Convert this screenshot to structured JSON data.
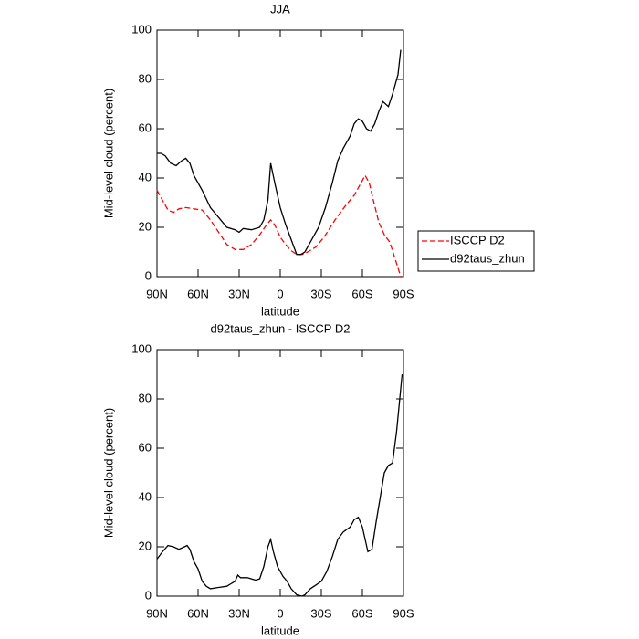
{
  "chart_data": [
    {
      "type": "line",
      "title": "JJA",
      "xlabel": "latitude",
      "ylabel": "Mid-level cloud (percent)",
      "xlim": [
        90,
        -90
      ],
      "ylim": [
        0,
        100
      ],
      "xticks": [
        {
          "value": 90,
          "label": "90N"
        },
        {
          "value": 60,
          "label": "60N"
        },
        {
          "value": 30,
          "label": "30N"
        },
        0,
        {
          "value": -30,
          "label": "30S"
        },
        {
          "value": -60,
          "label": "60S"
        },
        {
          "value": -90,
          "label": "90S"
        }
      ],
      "yticks": [
        0,
        20,
        40,
        60,
        80,
        100
      ],
      "legend": "outside-right",
      "series": [
        {
          "name": "ISCCP D2",
          "color": "#ff0000",
          "dash": true,
          "x": [
            90,
            86,
            82,
            78,
            74,
            69,
            63,
            57,
            51,
            45,
            39,
            33,
            27,
            21,
            15,
            10,
            7,
            4,
            0,
            -4,
            -8,
            -12,
            -16,
            -20,
            -26,
            -32,
            -40,
            -48,
            -54,
            -58,
            -62,
            -65,
            -68,
            -72,
            -76,
            -80,
            -84,
            -88
          ],
          "values": [
            35,
            31,
            27,
            26,
            27.5,
            28,
            27.5,
            27,
            23,
            18,
            13,
            11,
            11,
            13,
            17,
            21,
            23,
            21,
            16,
            13,
            10.5,
            9,
            9,
            10,
            12,
            16,
            23,
            29,
            33,
            37,
            41,
            38,
            31,
            22,
            17,
            14,
            7,
            0
          ]
        },
        {
          "name": "d92taus_zhun",
          "color": "#000000",
          "dash": false,
          "x": [
            90,
            87,
            84,
            80,
            76,
            72,
            69,
            66,
            63,
            57,
            51,
            45,
            39,
            33,
            30,
            27,
            21,
            15,
            12,
            9,
            7,
            4,
            0,
            -4,
            -8,
            -12,
            -15,
            -18,
            -22,
            -28,
            -33,
            -38,
            -42,
            -46,
            -51,
            -54,
            -57,
            -60,
            -63,
            -66,
            -69,
            -72,
            -75,
            -79,
            -82,
            -86,
            -88
          ],
          "values": [
            50,
            50,
            49,
            46,
            45,
            47,
            48,
            46,
            41,
            35,
            28,
            24,
            20,
            19,
            18,
            19.5,
            19,
            20,
            23,
            31,
            46,
            38,
            28,
            21,
            15,
            9,
            9,
            10,
            14,
            20,
            28,
            38,
            47,
            52,
            57,
            62,
            64,
            63,
            60,
            59,
            62,
            67,
            71,
            69,
            74,
            82,
            92
          ]
        }
      ]
    },
    {
      "type": "line",
      "title": "d92taus_zhun - ISCCP D2",
      "xlabel": "latitude",
      "ylabel": "Mid-level cloud (percent)",
      "xlim": [
        90,
        -90
      ],
      "ylim": [
        0,
        100
      ],
      "xticks": [
        {
          "value": 90,
          "label": "90N"
        },
        {
          "value": 60,
          "label": "60N"
        },
        {
          "value": 30,
          "label": "30N"
        },
        0,
        {
          "value": -30,
          "label": "30S"
        },
        {
          "value": -60,
          "label": "60S"
        },
        {
          "value": -90,
          "label": "90S"
        }
      ],
      "yticks": [
        0,
        20,
        40,
        60,
        80,
        100
      ],
      "series": [
        {
          "color": "#000000",
          "dash": false,
          "x": [
            90,
            86,
            82,
            78,
            74,
            70,
            68,
            66,
            63,
            60,
            57,
            54,
            51,
            45,
            39,
            36,
            33,
            31,
            29,
            24,
            18,
            15,
            12,
            9,
            7,
            5,
            2,
            -2,
            -5,
            -8,
            -12,
            -16,
            -18,
            -22,
            -26,
            -30,
            -34,
            -38,
            -42,
            -46,
            -51,
            -54,
            -57,
            -60,
            -64,
            -67,
            -70,
            -73,
            -76,
            -79,
            -82,
            -85,
            -89
          ],
          "values": [
            15,
            18,
            20.5,
            20,
            19,
            20,
            20.5,
            19,
            14,
            11,
            6,
            4,
            3,
            3.5,
            4,
            5,
            6,
            8.5,
            7.5,
            7.5,
            6.5,
            7,
            12,
            20,
            23,
            18,
            12,
            8,
            6,
            3,
            0.5,
            0,
            0.5,
            3,
            4.5,
            6,
            10,
            16,
            23,
            26,
            28,
            31,
            32,
            28,
            18,
            19,
            30,
            40,
            50,
            53,
            54,
            67,
            90
          ]
        }
      ]
    }
  ]
}
